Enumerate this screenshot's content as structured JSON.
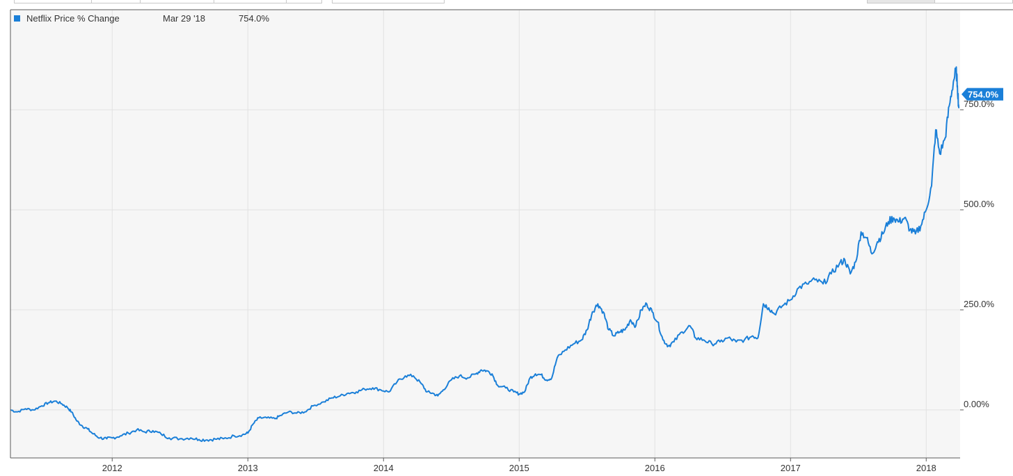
{
  "legend": {
    "series_name": "Netflix Price % Change",
    "date": "Mar 29 '18",
    "value": "754.0%",
    "color": "#1a7fd8"
  },
  "chart_data": {
    "type": "line",
    "series": [
      {
        "name": "Netflix Price % Change",
        "color": "#1a7fd8",
        "points": [
          [
            2011.25,
            0
          ],
          [
            2011.3,
            -5
          ],
          [
            2011.36,
            3
          ],
          [
            2011.42,
            0
          ],
          [
            2011.48,
            10
          ],
          [
            2011.53,
            18
          ],
          [
            2011.58,
            22
          ],
          [
            2011.63,
            15
          ],
          [
            2011.67,
            6
          ],
          [
            2011.7,
            -5
          ],
          [
            2011.74,
            -28
          ],
          [
            2011.78,
            -40
          ],
          [
            2011.82,
            -48
          ],
          [
            2011.86,
            -60
          ],
          [
            2011.91,
            -70
          ],
          [
            2011.96,
            -72
          ],
          [
            2012.0,
            -70
          ],
          [
            2012.06,
            -65
          ],
          [
            2012.12,
            -58
          ],
          [
            2012.18,
            -50
          ],
          [
            2012.24,
            -55
          ],
          [
            2012.3,
            -52
          ],
          [
            2012.36,
            -60
          ],
          [
            2012.42,
            -70
          ],
          [
            2012.5,
            -72
          ],
          [
            2012.58,
            -70
          ],
          [
            2012.64,
            -74
          ],
          [
            2012.7,
            -75
          ],
          [
            2012.76,
            -73
          ],
          [
            2012.82,
            -72
          ],
          [
            2012.9,
            -65
          ],
          [
            2012.96,
            -62
          ],
          [
            2013.0,
            -58
          ],
          [
            2013.04,
            -35
          ],
          [
            2013.08,
            -20
          ],
          [
            2013.14,
            -20
          ],
          [
            2013.2,
            -22
          ],
          [
            2013.24,
            -14
          ],
          [
            2013.3,
            -5
          ],
          [
            2013.36,
            -8
          ],
          [
            2013.42,
            -5
          ],
          [
            2013.48,
            10
          ],
          [
            2013.56,
            20
          ],
          [
            2013.62,
            30
          ],
          [
            2013.68,
            35
          ],
          [
            2013.74,
            42
          ],
          [
            2013.8,
            45
          ],
          [
            2013.86,
            52
          ],
          [
            2013.92,
            55
          ],
          [
            2013.98,
            50
          ],
          [
            2014.04,
            45
          ],
          [
            2014.1,
            70
          ],
          [
            2014.16,
            85
          ],
          [
            2014.22,
            85
          ],
          [
            2014.28,
            65
          ],
          [
            2014.32,
            45
          ],
          [
            2014.36,
            42
          ],
          [
            2014.4,
            35
          ],
          [
            2014.44,
            50
          ],
          [
            2014.5,
            75
          ],
          [
            2014.56,
            85
          ],
          [
            2014.62,
            80
          ],
          [
            2014.68,
            90
          ],
          [
            2014.72,
            100
          ],
          [
            2014.76,
            98
          ],
          [
            2014.8,
            90
          ],
          [
            2014.84,
            62
          ],
          [
            2014.9,
            55
          ],
          [
            2014.96,
            45
          ],
          [
            2015.0,
            40
          ],
          [
            2015.04,
            45
          ],
          [
            2015.08,
            80
          ],
          [
            2015.12,
            90
          ],
          [
            2015.16,
            88
          ],
          [
            2015.2,
            75
          ],
          [
            2015.24,
            80
          ],
          [
            2015.28,
            130
          ],
          [
            2015.34,
            150
          ],
          [
            2015.4,
            165
          ],
          [
            2015.46,
            175
          ],
          [
            2015.5,
            200
          ],
          [
            2015.54,
            245
          ],
          [
            2015.58,
            265
          ],
          [
            2015.62,
            245
          ],
          [
            2015.66,
            200
          ],
          [
            2015.7,
            185
          ],
          [
            2015.74,
            195
          ],
          [
            2015.78,
            200
          ],
          [
            2015.82,
            225
          ],
          [
            2015.86,
            210
          ],
          [
            2015.9,
            250
          ],
          [
            2015.94,
            265
          ],
          [
            2015.98,
            245
          ],
          [
            2016.02,
            220
          ],
          [
            2016.06,
            175
          ],
          [
            2016.1,
            160
          ],
          [
            2016.14,
            170
          ],
          [
            2016.2,
            195
          ],
          [
            2016.26,
            210
          ],
          [
            2016.3,
            180
          ],
          [
            2016.36,
            175
          ],
          [
            2016.42,
            165
          ],
          [
            2016.48,
            170
          ],
          [
            2016.54,
            180
          ],
          [
            2016.6,
            170
          ],
          [
            2016.66,
            175
          ],
          [
            2016.72,
            185
          ],
          [
            2016.76,
            180
          ],
          [
            2016.8,
            265
          ],
          [
            2016.84,
            255
          ],
          [
            2016.88,
            240
          ],
          [
            2016.94,
            260
          ],
          [
            2017.0,
            275
          ],
          [
            2017.06,
            305
          ],
          [
            2017.12,
            315
          ],
          [
            2017.18,
            325
          ],
          [
            2017.24,
            315
          ],
          [
            2017.3,
            340
          ],
          [
            2017.36,
            365
          ],
          [
            2017.4,
            375
          ],
          [
            2017.44,
            340
          ],
          [
            2017.48,
            370
          ],
          [
            2017.52,
            445
          ],
          [
            2017.56,
            430
          ],
          [
            2017.6,
            390
          ],
          [
            2017.64,
            420
          ],
          [
            2017.68,
            440
          ],
          [
            2017.72,
            470
          ],
          [
            2017.76,
            480
          ],
          [
            2017.8,
            470
          ],
          [
            2017.84,
            480
          ],
          [
            2017.88,
            450
          ],
          [
            2017.92,
            440
          ],
          [
            2017.96,
            460
          ],
          [
            2018.0,
            500
          ],
          [
            2018.04,
            560
          ],
          [
            2018.07,
            700
          ],
          [
            2018.1,
            640
          ],
          [
            2018.14,
            680
          ],
          [
            2018.17,
            760
          ],
          [
            2018.2,
            820
          ],
          [
            2018.22,
            850
          ],
          [
            2018.23,
            810
          ],
          [
            2018.24,
            754
          ]
        ]
      }
    ],
    "x_ticks": [
      "2012",
      "2013",
      "2014",
      "2015",
      "2016",
      "2017",
      "2018"
    ],
    "x_tick_values": [
      2012,
      2013,
      2014,
      2015,
      2016,
      2017,
      2018
    ],
    "y_ticks": [
      "0.00%",
      "250.0%",
      "500.0%",
      "750.0%"
    ],
    "y_tick_values": [
      0,
      250,
      500,
      750
    ],
    "xlim": [
      2011.25,
      2018.25
    ],
    "ylim": [
      -120,
      1000
    ],
    "end_value_label": "754.0%",
    "grid": true,
    "legend_position": "top-left",
    "plot_background": "#f6f6f6",
    "grid_color": "#e2e2e2",
    "axis_color": "#5a5a5a"
  }
}
